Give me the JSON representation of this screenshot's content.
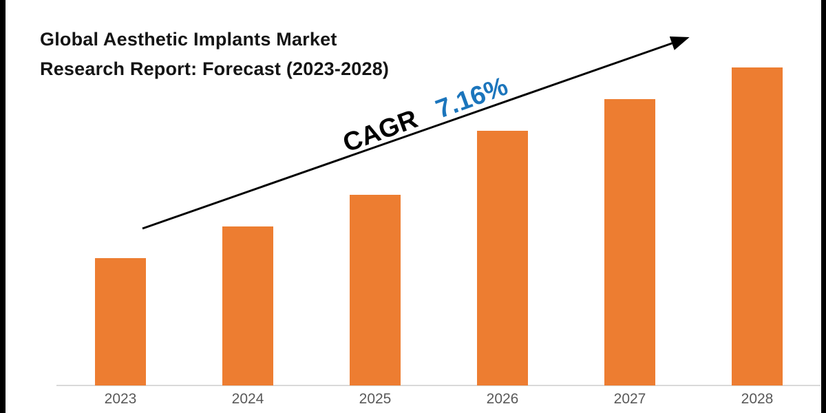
{
  "frame": {
    "background": "#FFFFFF",
    "edge_bar_color": "#000000"
  },
  "title": {
    "line1": "Global Aesthetic Implants Market",
    "line2": "Research Report: Forecast (2023-2028)",
    "color": "#151515"
  },
  "annotation": {
    "cagr_label": "CAGR",
    "cagr_value": "7.16%",
    "label_color": "#000000",
    "value_color": "#1B75BC",
    "arrow_color": "#000000"
  },
  "chart_data": {
    "type": "bar",
    "title": "Global Aesthetic Implants Market Research Report: Forecast (2023-2028)",
    "categories": [
      "2023",
      "2024",
      "2025",
      "2026",
      "2027",
      "2028"
    ],
    "values": [
      4,
      5,
      6,
      8,
      9,
      10
    ],
    "values_note": "relative units estimated from bar heights; no y-axis values shown in image",
    "xlabel": "",
    "ylabel": "",
    "ylim": [
      0,
      10
    ],
    "grid": false,
    "legend_position": "none",
    "bar_color": "#ED7D31",
    "axis_line_color": "#D9D9D9",
    "tick_label_color": "#595959",
    "annotation_text": "CAGR 7.16%"
  }
}
